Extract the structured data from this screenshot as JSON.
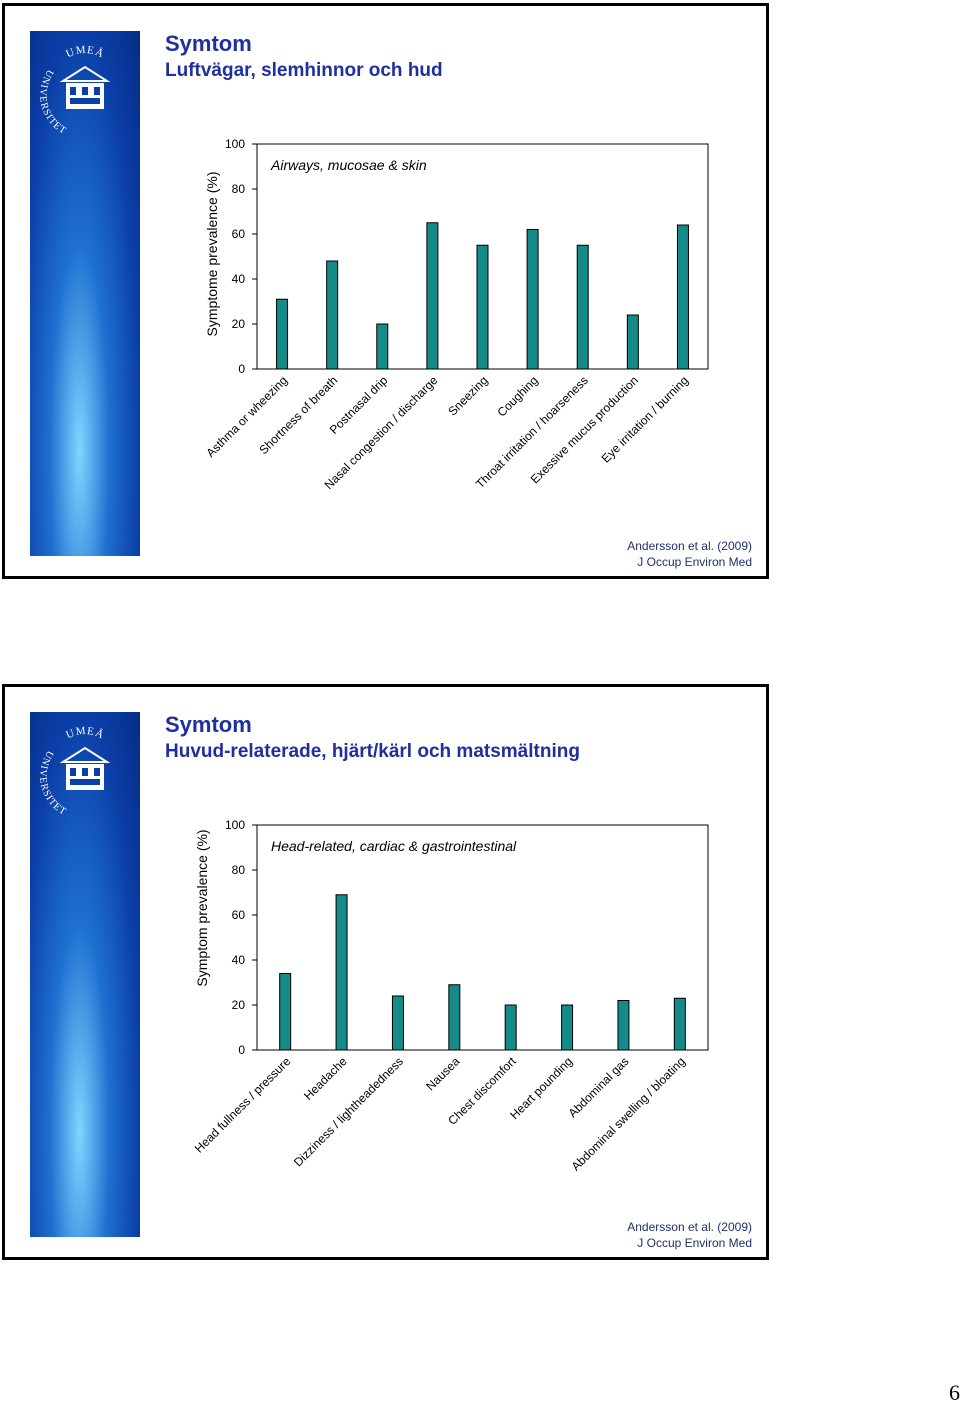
{
  "slides": [
    {
      "title": "Symtom",
      "subtitle": "Luftvägar, slemhinnor och hud",
      "citation_line1": "Andersson et al. (2009)",
      "citation_line2": "J Occup Environ Med"
    },
    {
      "title": "Symtom",
      "subtitle": "Huvud-relaterade, hjärt/kärl och matsmältning",
      "citation_line1": "Andersson et al. (2009)",
      "citation_line2": "J Occup Environ Med"
    }
  ],
  "logo": {
    "line1": "UMEÅ",
    "line2": "UNIVERSITET"
  },
  "page_number": "6",
  "colors": {
    "bar": "#148b88",
    "title": "#1f2f9f",
    "sidebar": "#0b3fa8"
  },
  "chart_data": [
    {
      "type": "bar",
      "title": "Airways, mucosae & skin",
      "ylabel": "Symptome prevalence (%)",
      "xlabel": "",
      "ylim": [
        0,
        100
      ],
      "yticks": [
        0,
        20,
        40,
        60,
        80,
        100
      ],
      "categories": [
        "Asthma or wheezing",
        "Shortness of breath",
        "Postnasal drip",
        "Nasal congestion / discharge",
        "Sneezing",
        "Coughing",
        "Throat irritation / hoarseness",
        "Exessive mucus production",
        "Eye irritation / burning"
      ],
      "values": [
        31,
        48,
        20,
        65,
        55,
        62,
        55,
        24,
        64
      ]
    },
    {
      "type": "bar",
      "title": "Head-related, cardiac & gastrointestinal",
      "ylabel": "Symptom prevalence (%)",
      "xlabel": "",
      "ylim": [
        0,
        100
      ],
      "yticks": [
        0,
        20,
        40,
        60,
        80,
        100
      ],
      "categories": [
        "Head fullness / pressure",
        "Headache",
        "Dizziness / lightheadedness",
        "Nausea",
        "Chest discomfort",
        "Heart pounding",
        "Abdominal gas",
        "Abdominal swelling / bloating"
      ],
      "values": [
        34,
        69,
        24,
        29,
        20,
        20,
        22,
        23
      ]
    }
  ]
}
